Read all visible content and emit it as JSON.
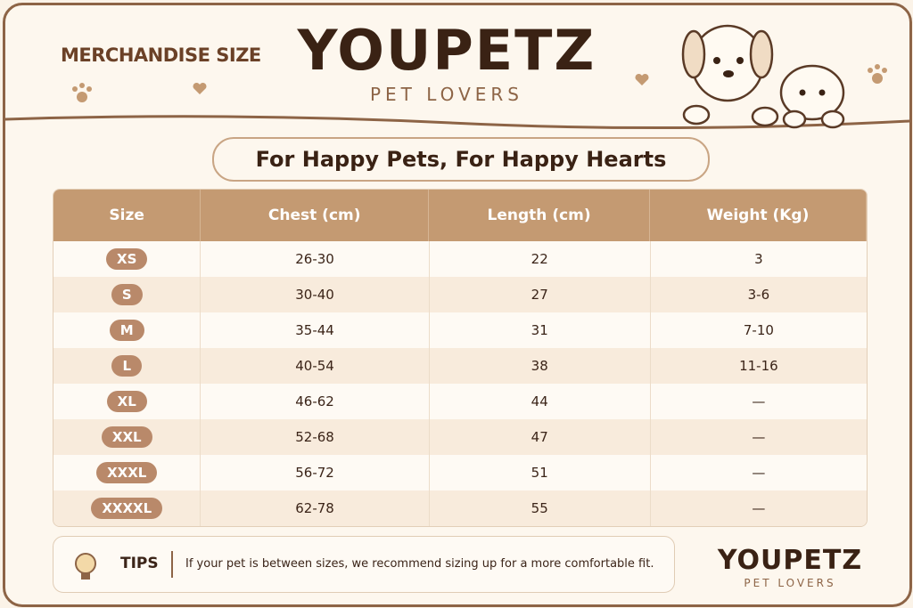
{
  "header": {
    "label": "MERCHANDISE SIZE",
    "brand": "YOUPETZ",
    "tagline": "PET LOVERS"
  },
  "banner": "For Happy Pets, For Happy Hearts",
  "table": {
    "headers": [
      "Size",
      "Chest (cm)",
      "Length (cm)",
      "Weight (Kg)"
    ],
    "rows": [
      [
        "XS",
        "26-30",
        "22",
        "3"
      ],
      [
        "S",
        "30-40",
        "27",
        "3-6"
      ],
      [
        "M",
        "35-44",
        "31",
        "7-10"
      ],
      [
        "L",
        "40-54",
        "38",
        "11-16"
      ],
      [
        "XL",
        "46-62",
        "44",
        "—"
      ],
      [
        "XXL",
        "52-68",
        "47",
        "—"
      ],
      [
        "XXXL",
        "56-72",
        "51",
        "—"
      ],
      [
        "XXXXL",
        "62-78",
        "55",
        "—"
      ]
    ]
  },
  "tips": {
    "label": "TIPS",
    "text": "If your pet is between sizes, we recommend sizing up for a more comfortable fit."
  },
  "footer": {
    "brand": "YOUPETZ",
    "tagline": "PET LOVERS"
  }
}
